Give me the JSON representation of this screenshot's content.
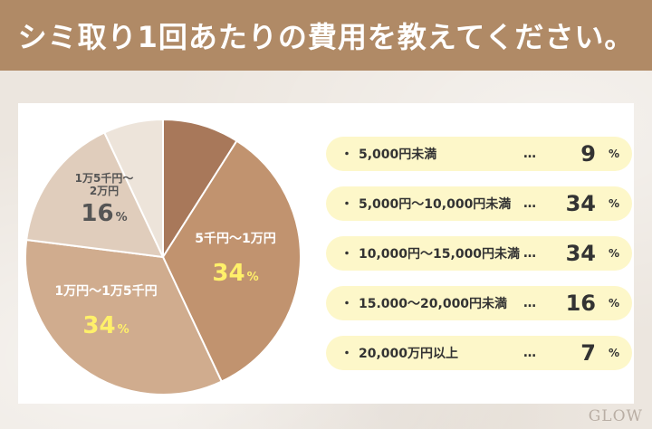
{
  "header": {
    "title": "シミ取り1回あたりの費用を教えてください。"
  },
  "chart_data": {
    "type": "pie",
    "slices": [
      {
        "key": "a",
        "label": "5,000円未満",
        "value": 9,
        "color": "#a8785a",
        "label_color": "#ffffff",
        "value_color": "#ffffff"
      },
      {
        "key": "b",
        "label": "5千円～1万円",
        "value": 34,
        "color": "#c1936f",
        "label_color": "#ffffff",
        "value_color": "#fff06a"
      },
      {
        "key": "c",
        "label": "1万円～1万5千円",
        "value": 34,
        "color": "#d0ac8e",
        "label_color": "#ffffff",
        "value_color": "#fff06a"
      },
      {
        "key": "d",
        "label": "1万5千円～2万円",
        "value": 16,
        "color": "#e0cdbc",
        "label_color": "#555555",
        "value_color": "#555555"
      },
      {
        "key": "e",
        "label": "20,000万円以上",
        "value": 7,
        "color": "#ede4da",
        "label_color": "#ffffff",
        "value_color": "#ffffff"
      }
    ],
    "unit": "%",
    "legend": [
      {
        "bullet": "・",
        "label": "5,000円未満",
        "dots": "…",
        "value": "9",
        "unit": "%"
      },
      {
        "bullet": "・",
        "label": "5,000円～10,000円未満",
        "dots": "…",
        "value": "34",
        "unit": "%"
      },
      {
        "bullet": "・",
        "label": "10,000円～15,000円未満",
        "dots": "…",
        "value": "34",
        "unit": "%"
      },
      {
        "bullet": "・",
        "label": "15.000～20,000円未満",
        "dots": "…",
        "value": "16",
        "unit": "%"
      },
      {
        "bullet": "・",
        "label": "20,000万円以上",
        "dots": "…",
        "value": "7",
        "unit": "%"
      }
    ]
  },
  "pie_labels": {
    "b": {
      "name_lines": [
        "5千円～1万円"
      ],
      "pct": "34",
      "unit": "%"
    },
    "c": {
      "name_lines": [
        "1万円～1万5千円"
      ],
      "pct": "34",
      "unit": "%"
    },
    "d": {
      "name_lines": [
        "1万5千円～",
        "2万円"
      ],
      "pct": "16",
      "unit": "%"
    }
  },
  "watermark": "GLOW"
}
